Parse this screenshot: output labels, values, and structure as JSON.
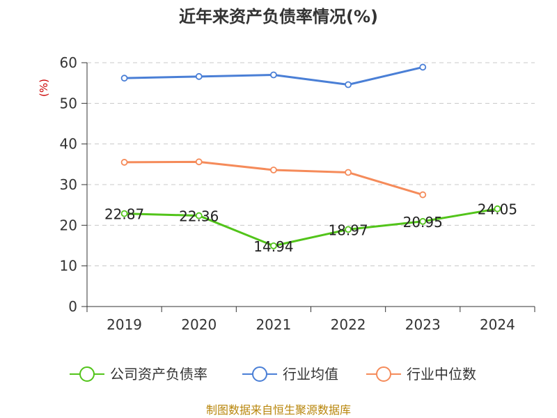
{
  "chart_data": {
    "type": "line",
    "title": "近年来资产负债率情况(%)",
    "ylabel": "(%)",
    "xlabel": "",
    "ylim": [
      0,
      60
    ],
    "yticks": [
      0,
      10,
      20,
      30,
      40,
      50,
      60
    ],
    "grid": true,
    "legend_position": "bottom",
    "categories": [
      "2019",
      "2020",
      "2021",
      "2022",
      "2023",
      "2024"
    ],
    "series": [
      {
        "name": "公司资产负债率",
        "color": "#52c41a",
        "values": [
          22.87,
          22.36,
          14.94,
          18.97,
          20.95,
          24.05
        ],
        "show_labels": true
      },
      {
        "name": "行业均值",
        "color": "#4a7fd6",
        "values": [
          56.2,
          56.6,
          57.0,
          54.6,
          58.9,
          null
        ],
        "show_labels": false
      },
      {
        "name": "行业中位数",
        "color": "#f58b5a",
        "values": [
          35.5,
          35.6,
          33.6,
          33.0,
          27.5,
          null
        ],
        "show_labels": false
      }
    ]
  },
  "source_text": "制图数据来自恒生聚源数据库"
}
